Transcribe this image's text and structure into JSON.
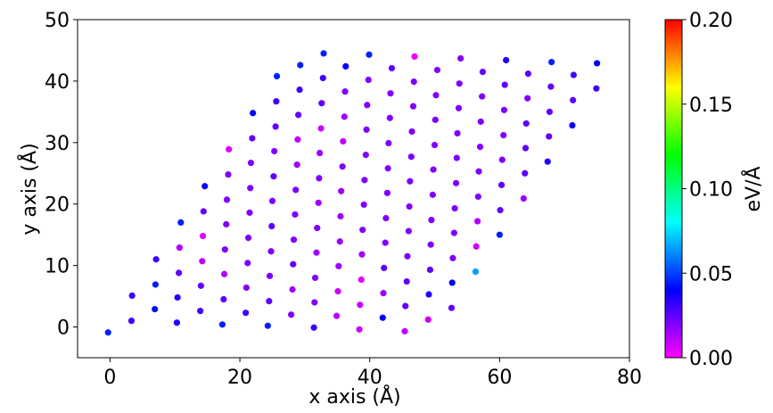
{
  "chart_data": {
    "type": "scatter",
    "xlabel": "x axis (Å)",
    "ylabel": "y axis (Å)",
    "xlim": [
      -5,
      80
    ],
    "xticks": [
      0,
      20,
      40,
      60,
      80
    ],
    "ylim": [
      -5,
      50
    ],
    "yticks": [
      0,
      10,
      20,
      30,
      40,
      50
    ],
    "colorbar": {
      "label": "eV/Å",
      "lim": [
        0,
        0.2
      ],
      "ticks": [
        {
          "value": 0,
          "label": "0.00"
        },
        {
          "value": 0.05,
          "label": "0.05"
        },
        {
          "value": 0.1,
          "label": "0.10"
        },
        {
          "value": 0.15,
          "label": "0.15"
        },
        {
          "value": 0.2,
          "label": "0.20"
        }
      ]
    },
    "x": [
      -0.3,
      3.3,
      3.4,
      6.9,
      7.0,
      7.1,
      10.3,
      10.4,
      10.6,
      10.7,
      10.9,
      13.9,
      14.0,
      14.2,
      14.3,
      14.4,
      14.6,
      17.3,
      17.5,
      17.6,
      17.7,
      17.9,
      18.0,
      18.2,
      18.3,
      20.9,
      21.0,
      21.2,
      21.3,
      21.5,
      21.6,
      21.7,
      21.9,
      22.0,
      24.3,
      24.5,
      24.6,
      24.8,
      24.9,
      25.0,
      25.2,
      25.3,
      25.5,
      25.6,
      25.7,
      27.9,
      28.1,
      28.2,
      28.3,
      28.5,
      28.6,
      28.8,
      28.9,
      29.0,
      29.2,
      29.3,
      31.4,
      31.5,
      31.6,
      31.8,
      31.9,
      32.1,
      32.2,
      32.3,
      32.5,
      32.6,
      32.8,
      32.9,
      34.9,
      35.1,
      35.2,
      35.4,
      35.5,
      35.6,
      35.8,
      35.9,
      36.1,
      36.2,
      36.3,
      38.4,
      38.5,
      38.7,
      38.8,
      38.9,
      39.1,
      39.2,
      39.4,
      39.5,
      39.6,
      39.8,
      39.9,
      42.0,
      42.1,
      42.2,
      42.4,
      42.5,
      42.7,
      42.8,
      42.9,
      43.1,
      43.2,
      43.4,
      45.4,
      45.5,
      45.7,
      45.8,
      46.0,
      46.1,
      46.2,
      46.4,
      46.5,
      46.7,
      46.8,
      46.9,
      49.0,
      49.1,
      49.3,
      49.4,
      49.5,
      49.7,
      49.8,
      50.0,
      50.1,
      50.2,
      50.4,
      52.6,
      52.7,
      52.8,
      53.0,
      53.1,
      53.3,
      53.4,
      53.5,
      53.7,
      53.8,
      54.0,
      56.3,
      56.4,
      56.6,
      56.7,
      56.8,
      57.0,
      57.1,
      57.3,
      57.4,
      60.0,
      60.1,
      60.3,
      60.4,
      60.6,
      60.7,
      60.8,
      61.0,
      63.7,
      63.9,
      64.0,
      64.1,
      64.3,
      64.4,
      67.4,
      67.6,
      67.7,
      67.9,
      68.0,
      71.2,
      71.3,
      71.4,
      74.9,
      75.0
    ],
    "y": [
      -0.9,
      1.0,
      5.1,
      2.9,
      6.9,
      11.0,
      0.7,
      4.8,
      8.8,
      12.9,
      17.0,
      2.6,
      6.7,
      10.7,
      14.8,
      18.8,
      22.9,
      0.4,
      4.5,
      8.6,
      12.6,
      16.7,
      20.7,
      24.8,
      28.9,
      2.3,
      6.4,
      10.4,
      14.5,
      18.6,
      22.6,
      26.7,
      30.7,
      34.8,
      0.2,
      4.2,
      8.3,
      12.3,
      16.4,
      20.5,
      24.5,
      28.6,
      32.6,
      36.7,
      40.8,
      2.0,
      6.1,
      10.2,
      14.2,
      18.3,
      22.3,
      26.4,
      30.5,
      34.5,
      38.6,
      42.6,
      -0.1,
      4.0,
      8.0,
      12.1,
      16.1,
      20.2,
      24.2,
      28.3,
      32.3,
      36.4,
      40.5,
      44.5,
      1.8,
      5.8,
      9.9,
      13.9,
      18.0,
      22.1,
      26.1,
      30.2,
      34.2,
      38.3,
      42.4,
      -0.4,
      3.6,
      7.7,
      11.8,
      15.8,
      19.9,
      23.9,
      28.0,
      32.1,
      36.1,
      40.2,
      44.3,
      1.5,
      5.5,
      9.6,
      13.7,
      17.7,
      21.8,
      25.8,
      29.9,
      34.0,
      38.0,
      42.1,
      -0.7,
      3.4,
      7.4,
      11.5,
      15.6,
      19.6,
      23.7,
      27.7,
      31.8,
      35.9,
      39.9,
      44.0,
      1.2,
      5.3,
      9.3,
      13.4,
      17.4,
      21.5,
      25.6,
      29.6,
      33.7,
      37.7,
      41.8,
      3.1,
      7.2,
      11.2,
      15.3,
      19.3,
      23.4,
      27.5,
      31.5,
      35.6,
      39.6,
      43.7,
      9.0,
      13.1,
      17.2,
      21.2,
      25.3,
      29.3,
      33.4,
      37.5,
      41.5,
      15.0,
      19.0,
      23.1,
      27.2,
      31.2,
      35.3,
      39.4,
      43.4,
      20.9,
      25.0,
      29.1,
      33.1,
      37.2,
      41.2,
      26.9,
      31.0,
      35.0,
      39.1,
      43.1,
      32.8,
      36.9,
      41.0,
      38.8,
      42.9
    ],
    "values": [
      0.045,
      0.03,
      0.03,
      0.042,
      0.045,
      0.03,
      0.035,
      0.035,
      0.025,
      0.012,
      0.045,
      0.03,
      0.025,
      0.01,
      0.006,
      0.025,
      0.04,
      0.045,
      0.025,
      0.012,
      0.02,
      0.02,
      0.02,
      0.02,
      0.005,
      0.03,
      0.02,
      0.02,
      0.02,
      0.02,
      0.02,
      0.02,
      0.025,
      0.04,
      0.045,
      0.025,
      0.02,
      0.02,
      0.025,
      0.02,
      0.025,
      0.02,
      0.025,
      0.03,
      0.045,
      0.02,
      0.015,
      0.025,
      0.02,
      0.02,
      0.02,
      0.015,
      0.01,
      0.025,
      0.03,
      0.045,
      0.03,
      0.02,
      0.02,
      0.015,
      0.02,
      0.015,
      0.02,
      0.015,
      0.008,
      0.025,
      0.03,
      0.045,
      0.01,
      0.008,
      0.015,
      0.015,
      0.015,
      0.015,
      0.02,
      0.01,
      0.015,
      0.02,
      0.04,
      0.008,
      0.008,
      0.005,
      0.015,
      0.02,
      0.02,
      0.02,
      0.02,
      0.02,
      0.02,
      0.02,
      0.045,
      0.04,
      0.015,
      0.025,
      0.02,
      0.02,
      0.02,
      0.02,
      0.02,
      0.02,
      0.02,
      0.025,
      0.01,
      0.025,
      0.025,
      0.02,
      0.02,
      0.02,
      0.02,
      0.02,
      0.02,
      0.02,
      0.02,
      0.003,
      0.008,
      0.035,
      0.025,
      0.02,
      0.02,
      0.02,
      0.02,
      0.02,
      0.02,
      0.02,
      0.02,
      0.025,
      0.04,
      0.02,
      0.02,
      0.02,
      0.02,
      0.02,
      0.02,
      0.02,
      0.02,
      0.02,
      0.065,
      0.008,
      0.012,
      0.02,
      0.02,
      0.02,
      0.02,
      0.02,
      0.025,
      0.045,
      0.025,
      0.025,
      0.02,
      0.02,
      0.02,
      0.025,
      0.035,
      0.015,
      0.025,
      0.025,
      0.025,
      0.02,
      0.025,
      0.035,
      0.025,
      0.025,
      0.025,
      0.045,
      0.04,
      0.025,
      0.03,
      0.03,
      0.04
    ]
  }
}
